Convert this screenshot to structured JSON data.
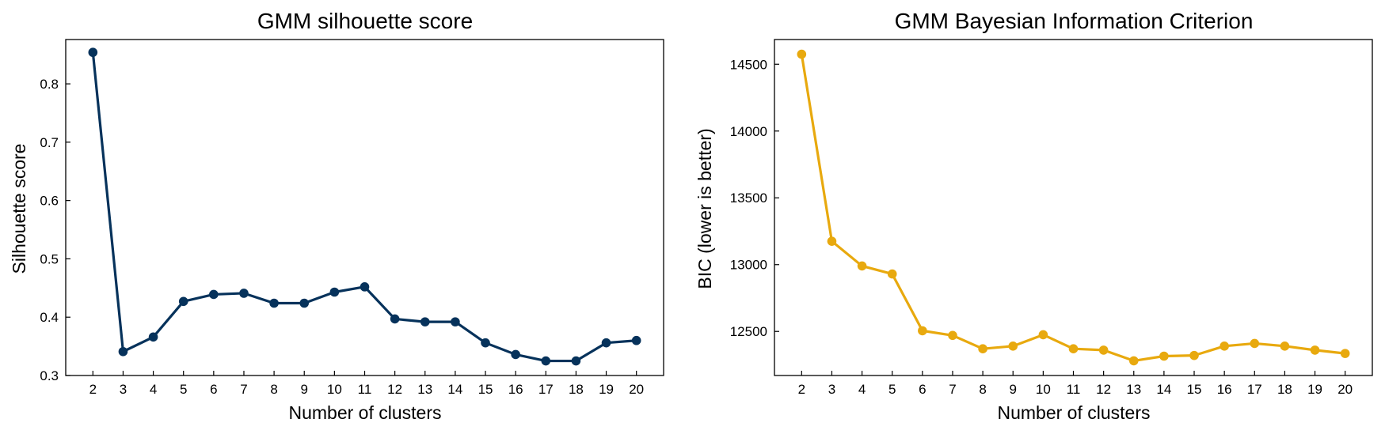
{
  "chart_data": [
    {
      "type": "line",
      "title": "GMM silhouette score",
      "xlabel": "Number of clusters",
      "ylabel": "Silhouette score",
      "x": [
        2,
        3,
        4,
        5,
        6,
        7,
        8,
        9,
        10,
        11,
        12,
        13,
        14,
        15,
        16,
        17,
        18,
        19,
        20
      ],
      "series": [
        {
          "values": [
            0.854,
            0.341,
            0.366,
            0.427,
            0.439,
            0.441,
            0.424,
            0.424,
            0.443,
            0.452,
            0.397,
            0.392,
            0.392,
            0.356,
            0.336,
            0.325,
            0.325,
            0.356,
            0.36
          ],
          "color": "#06325b"
        }
      ],
      "xlim": [
        1.1,
        20.9
      ],
      "ylim": [
        0.3,
        0.876
      ],
      "yticks": [
        0.3,
        0.4,
        0.5,
        0.6,
        0.7,
        0.8
      ],
      "ytick_labels": [
        "0.3",
        "0.4",
        "0.5",
        "0.6",
        "0.7",
        "0.8"
      ],
      "grid": false,
      "legend": "none"
    },
    {
      "type": "line",
      "title": "GMM Bayesian Information Criterion",
      "xlabel": "Number of clusters",
      "ylabel": "BIC (lower is better)",
      "x": [
        2,
        3,
        4,
        5,
        6,
        7,
        8,
        9,
        10,
        11,
        12,
        13,
        14,
        15,
        16,
        17,
        18,
        19,
        20
      ],
      "series": [
        {
          "values": [
            14575,
            13175,
            12990,
            12930,
            12505,
            12470,
            12370,
            12390,
            12475,
            12370,
            12360,
            12280,
            12315,
            12320,
            12390,
            12410,
            12390,
            12360,
            12335
          ],
          "color": "#e8a90e"
        }
      ],
      "xlim": [
        1.1,
        20.9
      ],
      "ylim": [
        12170,
        14685
      ],
      "yticks": [
        12500,
        13000,
        13500,
        14000,
        14500
      ],
      "ytick_labels": [
        "12500",
        "13000",
        "13500",
        "14000",
        "14500"
      ],
      "grid": false,
      "legend": "none"
    }
  ]
}
